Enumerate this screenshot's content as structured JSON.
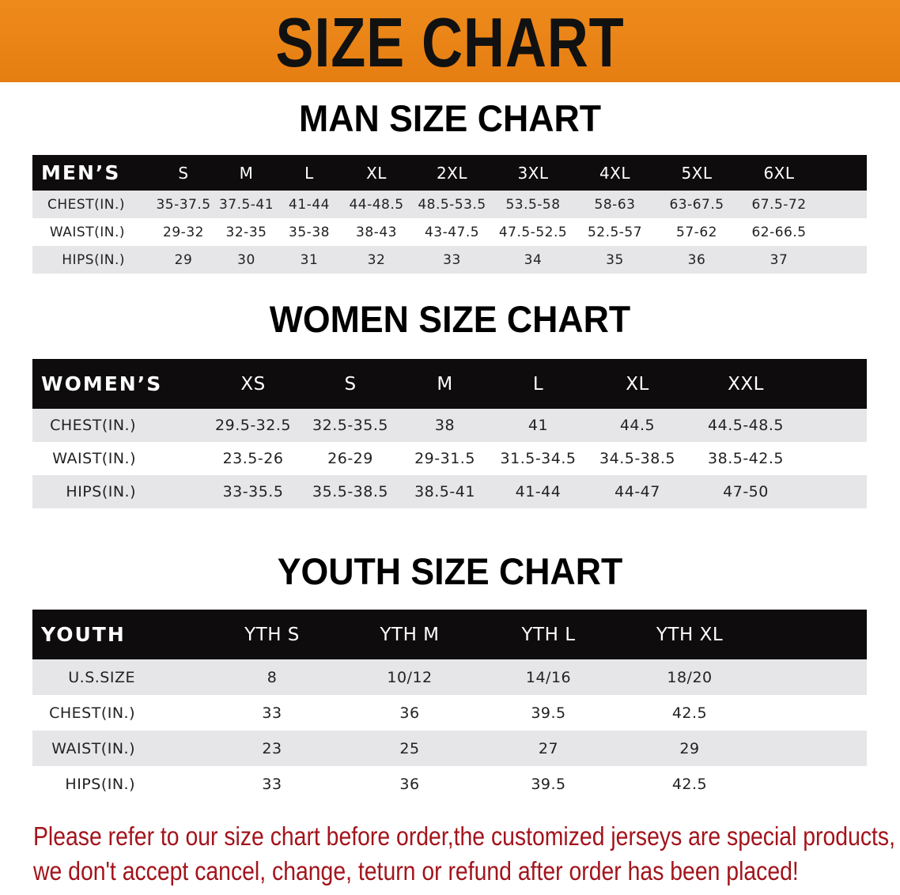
{
  "banner": {
    "title": "SIZE CHART",
    "color": "#e88414"
  },
  "men": {
    "title": "MAN SIZE CHART",
    "header": [
      "MEN’S",
      "S",
      "M",
      "L",
      "XL",
      "2XL",
      "3XL",
      "4XL",
      "5XL",
      "6XL"
    ],
    "rows": [
      [
        "CHEST(IN.)",
        "35-37.5",
        "37.5-41",
        "41-44",
        "44-48.5",
        "48.5-53.5",
        "53.5-58",
        "58-63",
        "63-67.5",
        "67.5-72"
      ],
      [
        "WAIST(IN.)",
        "29-32",
        "32-35",
        "35-38",
        "38-43",
        "43-47.5",
        "47.5-52.5",
        "52.5-57",
        "57-62",
        "62-66.5"
      ],
      [
        "HIPS(IN.)",
        "29",
        "30",
        "31",
        "32",
        "33",
        "34",
        "35",
        "36",
        "37"
      ]
    ]
  },
  "women": {
    "title": "WOMEN SIZE CHART",
    "header": [
      "WOMEN’S",
      "XS",
      "S",
      "M",
      "L",
      "XL",
      "XXL"
    ],
    "rows": [
      [
        "CHEST(IN.)",
        "29.5-32.5",
        "32.5-35.5",
        "38",
        "41",
        "44.5",
        "44.5-48.5"
      ],
      [
        "WAIST(IN.)",
        "23.5-26",
        "26-29",
        "29-31.5",
        "31.5-34.5",
        "34.5-38.5",
        "38.5-42.5"
      ],
      [
        "HIPS(IN.)",
        "33-35.5",
        "35.5-38.5",
        "38.5-41",
        "41-44",
        "44-47",
        "47-50"
      ]
    ]
  },
  "youth": {
    "title": "YOUTH SIZE CHART",
    "header": [
      "YOUTH",
      "YTH S",
      "YTH M",
      "YTH L",
      "YTH XL"
    ],
    "rows": [
      [
        "U.S.SIZE",
        "8",
        "10/12",
        "14/16",
        "18/20"
      ],
      [
        "CHEST(IN.)",
        "33",
        "36",
        "39.5",
        "42.5"
      ],
      [
        "WAIST(IN.)",
        "23",
        "25",
        "27",
        "29"
      ],
      [
        "HIPS(IN.)",
        "33",
        "36",
        "39.5",
        "42.5"
      ]
    ]
  },
  "notice": {
    "line1": "Please refer to our size chart before order,the customized jerseys are special products,",
    "line2": "we don't accept cancel, change, teturn or refund after order has been placed!",
    "color": "#a3141c"
  }
}
